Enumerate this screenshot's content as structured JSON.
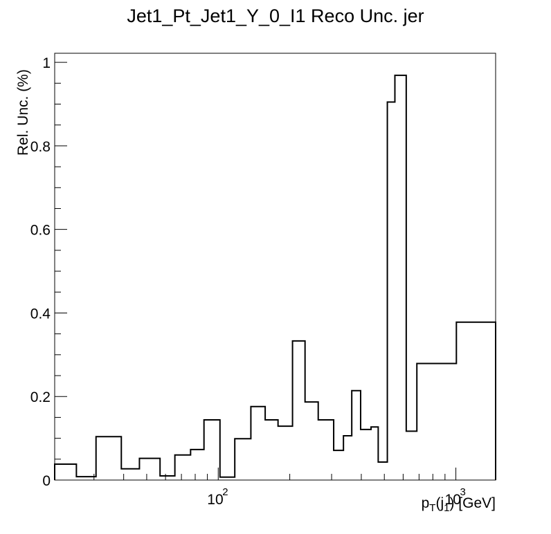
{
  "chart_data": {
    "type": "histogram",
    "title": "Jet1_Pt_Jet1_Y_0_I1 Reco Unc. jer",
    "xlabel_parts": {
      "p": "p",
      "sub_t": "T",
      "open": "(j",
      "sub_1": "1",
      "close": ") [GeV]"
    },
    "ylabel": "Rel. Unc. (%)",
    "x_scale": "log",
    "xlim": [
      20.5,
      1470
    ],
    "ylim": [
      0,
      1.0
    ],
    "y_ticks": [
      {
        "value": 0,
        "label": "0"
      },
      {
        "value": 0.2,
        "label": "0.2"
      },
      {
        "value": 0.4,
        "label": "0.4"
      },
      {
        "value": 0.6,
        "label": "0.6"
      },
      {
        "value": 0.8,
        "label": "0.8"
      },
      {
        "value": 1.0,
        "label": "1"
      }
    ],
    "x_major_ticks": [
      {
        "value": 100,
        "base": "10",
        "exp": "2"
      },
      {
        "value": 1000,
        "base": "10",
        "exp": "3"
      }
    ],
    "bin_edges": [
      20.5,
      25.3,
      30.6,
      39.1,
      46.6,
      56.9,
      65.7,
      76.5,
      87.1,
      101.7,
      117.4,
      137.2,
      157.6,
      178.5,
      205.4,
      231.9,
      263.5,
      306.1,
      336.5,
      364.7,
      397.4,
      439.6,
      471.2,
      514.8,
      553.9,
      618.2,
      685.3,
      1005.0,
      1470.0
    ],
    "values": [
      0.038,
      0.008,
      0.104,
      0.027,
      0.052,
      0.01,
      0.06,
      0.073,
      0.144,
      0.007,
      0.099,
      0.176,
      0.144,
      0.129,
      0.333,
      0.187,
      0.144,
      0.071,
      0.106,
      0.214,
      0.121,
      0.127,
      0.043,
      0.905,
      0.969,
      0.117,
      0.279,
      0.378,
      0.0
    ]
  }
}
